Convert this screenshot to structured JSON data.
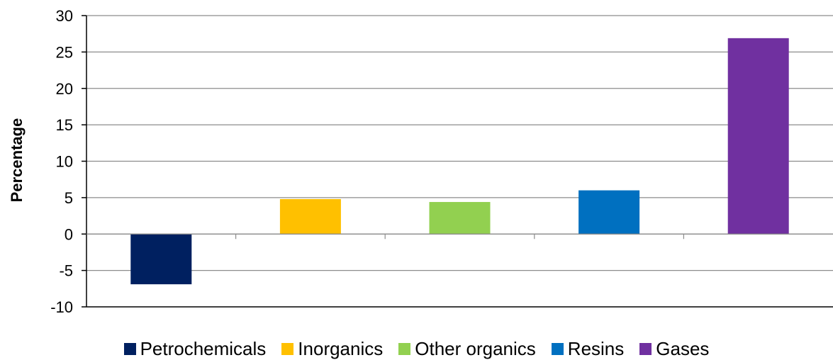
{
  "chart_data": {
    "type": "bar",
    "title": "",
    "xlabel": "",
    "ylabel": "Percentage",
    "ylim": [
      -10,
      30
    ],
    "yticks": [
      -10,
      -5,
      0,
      5,
      10,
      15,
      20,
      25,
      30
    ],
    "grid": true,
    "legend_position": "bottom",
    "categories": [
      "Petrochemicals",
      "Inorganics",
      "Other organics",
      "Resins",
      "Gases"
    ],
    "values": [
      -6.9,
      4.8,
      4.4,
      6.0,
      26.9
    ],
    "colors": [
      "#002060",
      "#FFC000",
      "#92D050",
      "#0070C0",
      "#7030A0"
    ]
  }
}
